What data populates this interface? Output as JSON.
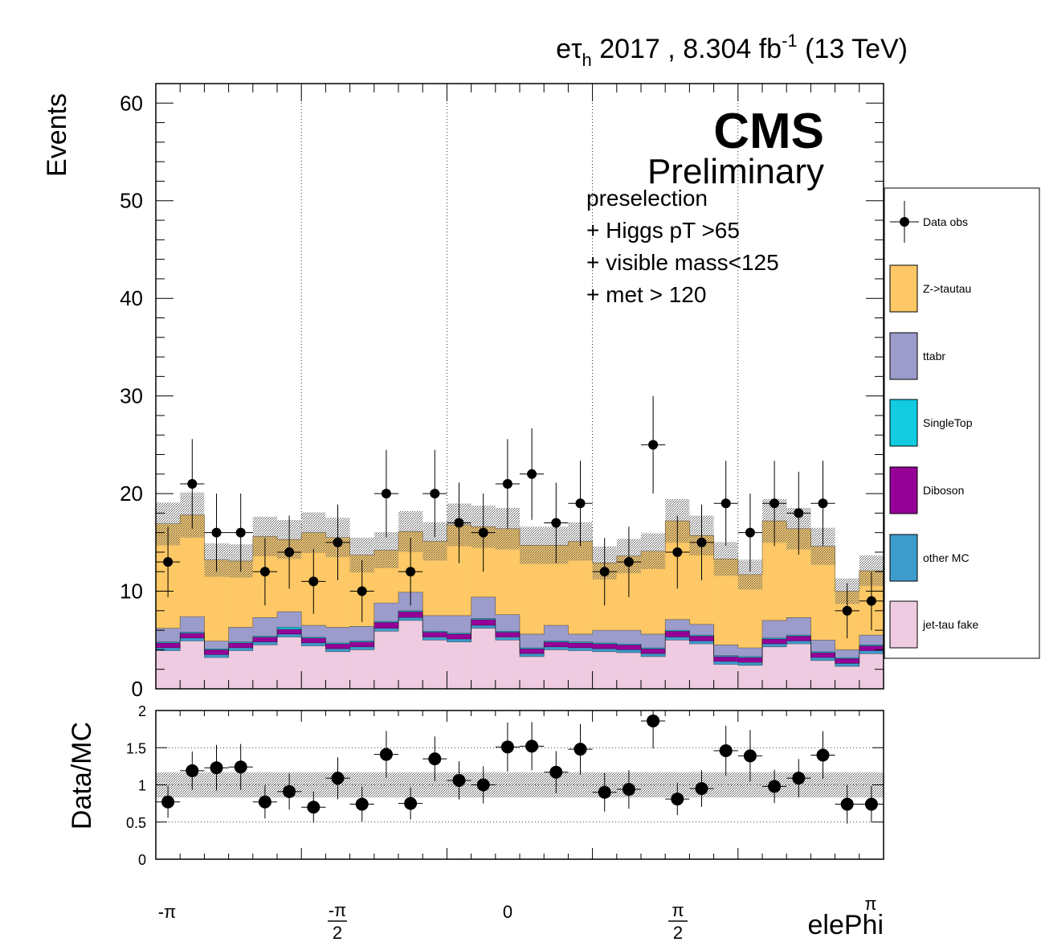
{
  "header": {
    "channel": "eτ",
    "channel_sub": "h",
    "year_lumi": "2017 , 8.304 fb",
    "lumi_exp": "-1",
    "energy": "(13 TeV)"
  },
  "cms_label": "CMS",
  "preliminary_label": "Preliminary",
  "selection_lines": [
    "preselection",
    "+ Higgs pT >65",
    "+ visible mass<125",
    "+ met > 120"
  ],
  "legend": [
    {
      "label": "Data obs",
      "type": "marker"
    },
    {
      "label": "Z->tautau",
      "color": "#fdc865"
    },
    {
      "label": "ttabr",
      "color": "#9b9ccb"
    },
    {
      "label": "SingleTop",
      "color": "#12cbe0"
    },
    {
      "label": "Diboson",
      "color": "#950097"
    },
    {
      "label": "other MC",
      "color": "#3d9ccc"
    },
    {
      "label": "jet-tau fake",
      "color": "#eecbe0"
    }
  ],
  "chart_data": [
    {
      "type": "stacked-histogram",
      "xlabel": "elePhi",
      "ylabel": "Events",
      "ylim": [
        0,
        62
      ],
      "yticks": [
        0,
        10,
        20,
        30,
        40,
        50,
        60
      ],
      "xtick_labels": [
        "-π",
        "-π/2",
        "0",
        "π/2",
        "π"
      ],
      "bins": 30,
      "series": [
        {
          "name": "jet-tau fake",
          "color": "#eecbe0",
          "values": [
            3.9,
            4.9,
            3.2,
            3.9,
            4.5,
            5.3,
            4.4,
            3.8,
            4.0,
            5.9,
            7.0,
            5.0,
            4.8,
            6.2,
            5.0,
            3.3,
            4.0,
            3.9,
            3.8,
            3.7,
            3.3,
            5.0,
            4.6,
            2.5,
            2.4,
            4.3,
            4.6,
            2.9,
            2.3,
            3.6
          ]
        },
        {
          "name": "other MC",
          "color": "#3d9ccc",
          "values": [
            0.3,
            0.3,
            0.3,
            0.3,
            0.3,
            0.3,
            0.3,
            0.3,
            0.3,
            0.3,
            0.3,
            0.3,
            0.3,
            0.3,
            0.3,
            0.3,
            0.3,
            0.3,
            0.3,
            0.3,
            0.3,
            0.3,
            0.3,
            0.3,
            0.3,
            0.3,
            0.3,
            0.3,
            0.3,
            0.3
          ]
        },
        {
          "name": "Diboson",
          "color": "#950097",
          "values": [
            0.5,
            0.5,
            0.5,
            0.5,
            0.5,
            0.5,
            0.5,
            0.5,
            0.5,
            0.6,
            0.6,
            0.5,
            0.5,
            0.6,
            0.5,
            0.5,
            0.5,
            0.5,
            0.5,
            0.5,
            0.5,
            0.6,
            0.5,
            0.5,
            0.5,
            0.5,
            0.5,
            0.5,
            0.5,
            0.5
          ]
        },
        {
          "name": "SingleTop",
          "color": "#12cbe0",
          "values": [
            0.1,
            0.1,
            0.1,
            0.1,
            0.1,
            0.2,
            0.1,
            0.1,
            0.1,
            0.1,
            0.1,
            0.1,
            0.1,
            0.1,
            0.1,
            0.1,
            0.1,
            0.1,
            0.1,
            0.1,
            0.1,
            0.1,
            0.1,
            0.1,
            0.1,
            0.1,
            0.1,
            0.1,
            0.1,
            0.1
          ]
        },
        {
          "name": "ttabr",
          "color": "#9b9ccb",
          "values": [
            1.4,
            1.6,
            0.8,
            1.5,
            1.9,
            1.6,
            1.2,
            1.6,
            1.5,
            1.9,
            1.9,
            1.6,
            1.8,
            2.2,
            1.7,
            1.4,
            1.6,
            0.8,
            1.3,
            1.4,
            1.4,
            1.1,
            1.1,
            1.1,
            0.9,
            1.8,
            1.8,
            1.2,
            0.8,
            1.0
          ]
        },
        {
          "name": "Z->tautau",
          "color": "#fdc865",
          "values": [
            10.7,
            10.4,
            8.3,
            6.8,
            8.3,
            7.4,
            9.5,
            9.2,
            7.3,
            5.4,
            6.2,
            7.6,
            9.3,
            7.2,
            8.8,
            9.1,
            8.2,
            9.5,
            6.9,
            7.6,
            8.5,
            10.1,
            9.1,
            8.8,
            7.5,
            10.2,
            9.1,
            9.6,
            6.0,
            6.6
          ]
        },
        {
          "name": "Data obs",
          "type": "points",
          "values": [
            13,
            21,
            16,
            16,
            12,
            14,
            11,
            15,
            10,
            20,
            12,
            20,
            17,
            16,
            21,
            22,
            17,
            19,
            12,
            13,
            25,
            14,
            15,
            19,
            16,
            19,
            18,
            19,
            8,
            9
          ]
        }
      ]
    },
    {
      "type": "scatter",
      "ylabel": "Data/MC",
      "ylim": [
        0,
        2
      ],
      "yticks": [
        0,
        0.5,
        1,
        1.5,
        2
      ],
      "ytick_labels": [
        "0",
        "0.5",
        "1",
        "1.5",
        "2"
      ],
      "series": [
        {
          "name": "Data/MC",
          "values": [
            0.77,
            1.19,
            1.23,
            1.24,
            0.77,
            0.91,
            0.7,
            1.09,
            0.74,
            1.41,
            0.75,
            1.35,
            1.06,
            1.0,
            1.51,
            1.52,
            1.17,
            1.48,
            0.9,
            0.94,
            1.86,
            0.81,
            0.95,
            1.46,
            1.39,
            0.98,
            1.09,
            1.4,
            0.74,
            0.74
          ]
        }
      ]
    }
  ]
}
